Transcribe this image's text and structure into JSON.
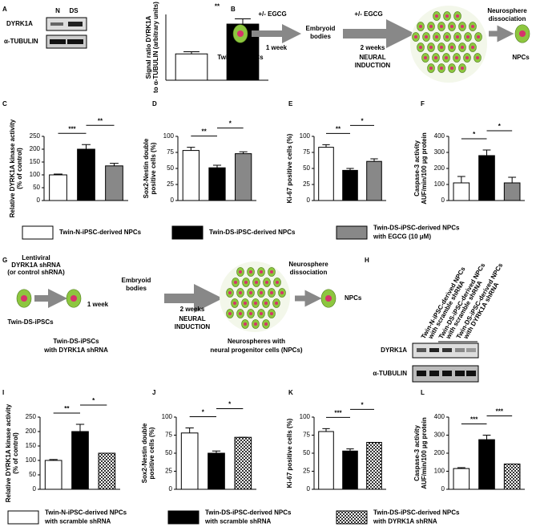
{
  "chart_data": [
    {
      "type": "bar",
      "label": "A",
      "ylabel": [
        "Signal ratio DYRK1A",
        "to α-TUBULIN (arbitrary units)"
      ],
      "categories": [
        null,
        null
      ],
      "values": [
        0.6,
        1.28
      ],
      "errors": [
        0.05,
        0.12
      ],
      "colors": [
        "#ffffff",
        "#000000"
      ],
      "ylim": [
        0,
        1.5
      ],
      "annotations": [
        "**"
      ]
    },
    {
      "type": "bar",
      "label": "C",
      "ylabel": [
        "Relative DYRK1A kinase activity",
        "(% of control)"
      ],
      "categories": [
        null,
        null,
        null
      ],
      "values": [
        100,
        200,
        135
      ],
      "errors": [
        3,
        18,
        10
      ],
      "colors": [
        "#ffffff",
        "#000000",
        "#888888"
      ],
      "ylim": [
        0,
        250
      ],
      "yticks": [
        0,
        50,
        100,
        150,
        200,
        250
      ],
      "annotations": [
        "***",
        "**"
      ]
    },
    {
      "type": "bar",
      "label": "D",
      "ylabel": [
        "Sox2-Nestin double",
        "positive cells (%)"
      ],
      "categories": [
        null,
        null,
        null
      ],
      "values": [
        78,
        51,
        73
      ],
      "errors": [
        5,
        4,
        3
      ],
      "colors": [
        "#ffffff",
        "#000000",
        "#888888"
      ],
      "ylim": [
        0,
        100
      ],
      "yticks": [
        0,
        25,
        50,
        75,
        100
      ],
      "annotations": [
        "**",
        "*"
      ]
    },
    {
      "type": "bar",
      "label": "E",
      "ylabel": [
        "Ki-67 positive cells (%)"
      ],
      "categories": [
        null,
        null,
        null
      ],
      "values": [
        83,
        47,
        61
      ],
      "errors": [
        4,
        3,
        4
      ],
      "colors": [
        "#ffffff",
        "#000000",
        "#888888"
      ],
      "ylim": [
        0,
        100
      ],
      "yticks": [
        0,
        25,
        50,
        75,
        100
      ],
      "annotations": [
        "**",
        "*"
      ]
    },
    {
      "type": "bar",
      "label": "F",
      "ylabel": [
        "Caspase-3 activity",
        "AUF/min/100 µg protein"
      ],
      "categories": [
        null,
        null,
        null
      ],
      "values": [
        110,
        280,
        110
      ],
      "errors": [
        40,
        35,
        35
      ],
      "colors": [
        "#ffffff",
        "#000000",
        "#888888"
      ],
      "ylim": [
        0,
        400
      ],
      "yticks": [
        0,
        100,
        200,
        300,
        400
      ],
      "annotations": [
        "*",
        "*"
      ]
    },
    {
      "type": "bar",
      "label": "I",
      "ylabel": [
        "Relative DYRK1A kinase activity",
        "(% of control)"
      ],
      "categories": [
        null,
        null,
        null
      ],
      "values": [
        100,
        200,
        125
      ],
      "errors": [
        3,
        25,
        0
      ],
      "colors": [
        "#ffffff",
        "#000000",
        "#ffffff"
      ],
      "patterns": [
        null,
        null,
        "checkerboard"
      ],
      "ylim": [
        0,
        250
      ],
      "yticks": [
        0,
        50,
        100,
        150,
        200,
        250
      ],
      "annotations": [
        "**",
        "*"
      ]
    },
    {
      "type": "bar",
      "label": "J",
      "ylabel": [
        "Sox2-Nestin double",
        "positive cells (%)"
      ],
      "categories": [
        null,
        null,
        null
      ],
      "values": [
        78,
        50,
        72
      ],
      "errors": [
        7,
        3,
        0
      ],
      "colors": [
        "#ffffff",
        "#000000",
        "#ffffff"
      ],
      "patterns": [
        null,
        null,
        "checkerboard"
      ],
      "ylim": [
        0,
        100
      ],
      "yticks": [
        0,
        25,
        50,
        75,
        100
      ],
      "annotations": [
        "*",
        "*"
      ]
    },
    {
      "type": "bar",
      "label": "K",
      "ylabel": [
        "Ki-67 positive cells (%)"
      ],
      "categories": [
        null,
        null,
        null
      ],
      "values": [
        80,
        53,
        65
      ],
      "errors": [
        4,
        3,
        0
      ],
      "colors": [
        "#ffffff",
        "#000000",
        "#ffffff"
      ],
      "patterns": [
        null,
        null,
        "checkerboard"
      ],
      "ylim": [
        0,
        100
      ],
      "yticks": [
        0,
        25,
        50,
        75,
        100
      ],
      "annotations": [
        "***",
        "*"
      ]
    },
    {
      "type": "bar",
      "label": "L",
      "ylabel": [
        "Caspase-3 activity",
        "AUF/min/100 µg protein"
      ],
      "categories": [
        null,
        null,
        null
      ],
      "values": [
        115,
        275,
        140
      ],
      "errors": [
        5,
        25,
        0
      ],
      "colors": [
        "#ffffff",
        "#000000",
        "#ffffff"
      ],
      "patterns": [
        null,
        null,
        "checkerboard"
      ],
      "ylim": [
        0,
        400
      ],
      "yticks": [
        0,
        100,
        200,
        300,
        400
      ],
      "annotations": [
        "***",
        "***"
      ]
    }
  ],
  "blot_a": {
    "lanes": [
      "N",
      "DS"
    ],
    "rows": [
      "DYRK1A",
      "α-TUBULIN"
    ]
  },
  "diagram_b": {
    "label": "B",
    "egcg": [
      "+/- EGCG",
      "+/- EGCG"
    ],
    "week1": "1 week",
    "embryoid": [
      "Embryoid",
      "bodies"
    ],
    "week2": "2 weeks",
    "induction": [
      "NEURAL",
      "INDUCTION"
    ],
    "dissociation": [
      "Neurosphere",
      "dissociation"
    ],
    "start": "Twin-DS-iPSCs",
    "end": "NPCs"
  },
  "legend_1": [
    [
      "Twin-N-iPSC-derived NPCs"
    ],
    [
      "Twin-DS-iPSC-derived NPCs"
    ],
    [
      "Twin-DS-iPSC-derived NPCs",
      "with EGCG (10 μM)"
    ]
  ],
  "diagram_g": {
    "label": "G",
    "lentiviral": [
      "Lentiviral",
      "DYRK1A shRNA",
      "(or control shRNA)"
    ],
    "start": "Twin-DS-iPSCs",
    "week1": "1 week",
    "embryoid": [
      "Embryoid",
      "bodies"
    ],
    "week2": "2 weeks",
    "induction": [
      "NEURAL",
      "INDUCTION"
    ],
    "dissociation": [
      "Neurosphere",
      "dissociation"
    ],
    "end": "NPCs",
    "transduced": [
      "Twin-DS-iPSCs",
      "with DYRK1A shRNA"
    ],
    "spheres": [
      "Neurospheres with",
      "neural progenitor cells (NPCs)"
    ]
  },
  "blot_h": {
    "label": "H",
    "lanes": [
      [
        "Twin-N-iPSC-derived NPCs",
        "with scramble shRNA"
      ],
      [
        "Twin-DS-iPSC-derived NPCs",
        "with scramble shRNA"
      ],
      [
        "Twin-DS-iPSC-derived NPCs",
        "with DYRK1A shRNA"
      ]
    ],
    "rows": [
      "DYRK1A",
      "α-TUBULIN"
    ]
  },
  "legend_2": [
    [
      "Twin-N-iPSC-derived NPCs",
      "with scramble shRNA"
    ],
    [
      "Twin-DS-iPSC-derived NPCs",
      "with scramble shRNA"
    ],
    [
      "Twin-DS-iPSC-derived NPCs",
      "with DYRK1A shRNA"
    ]
  ]
}
